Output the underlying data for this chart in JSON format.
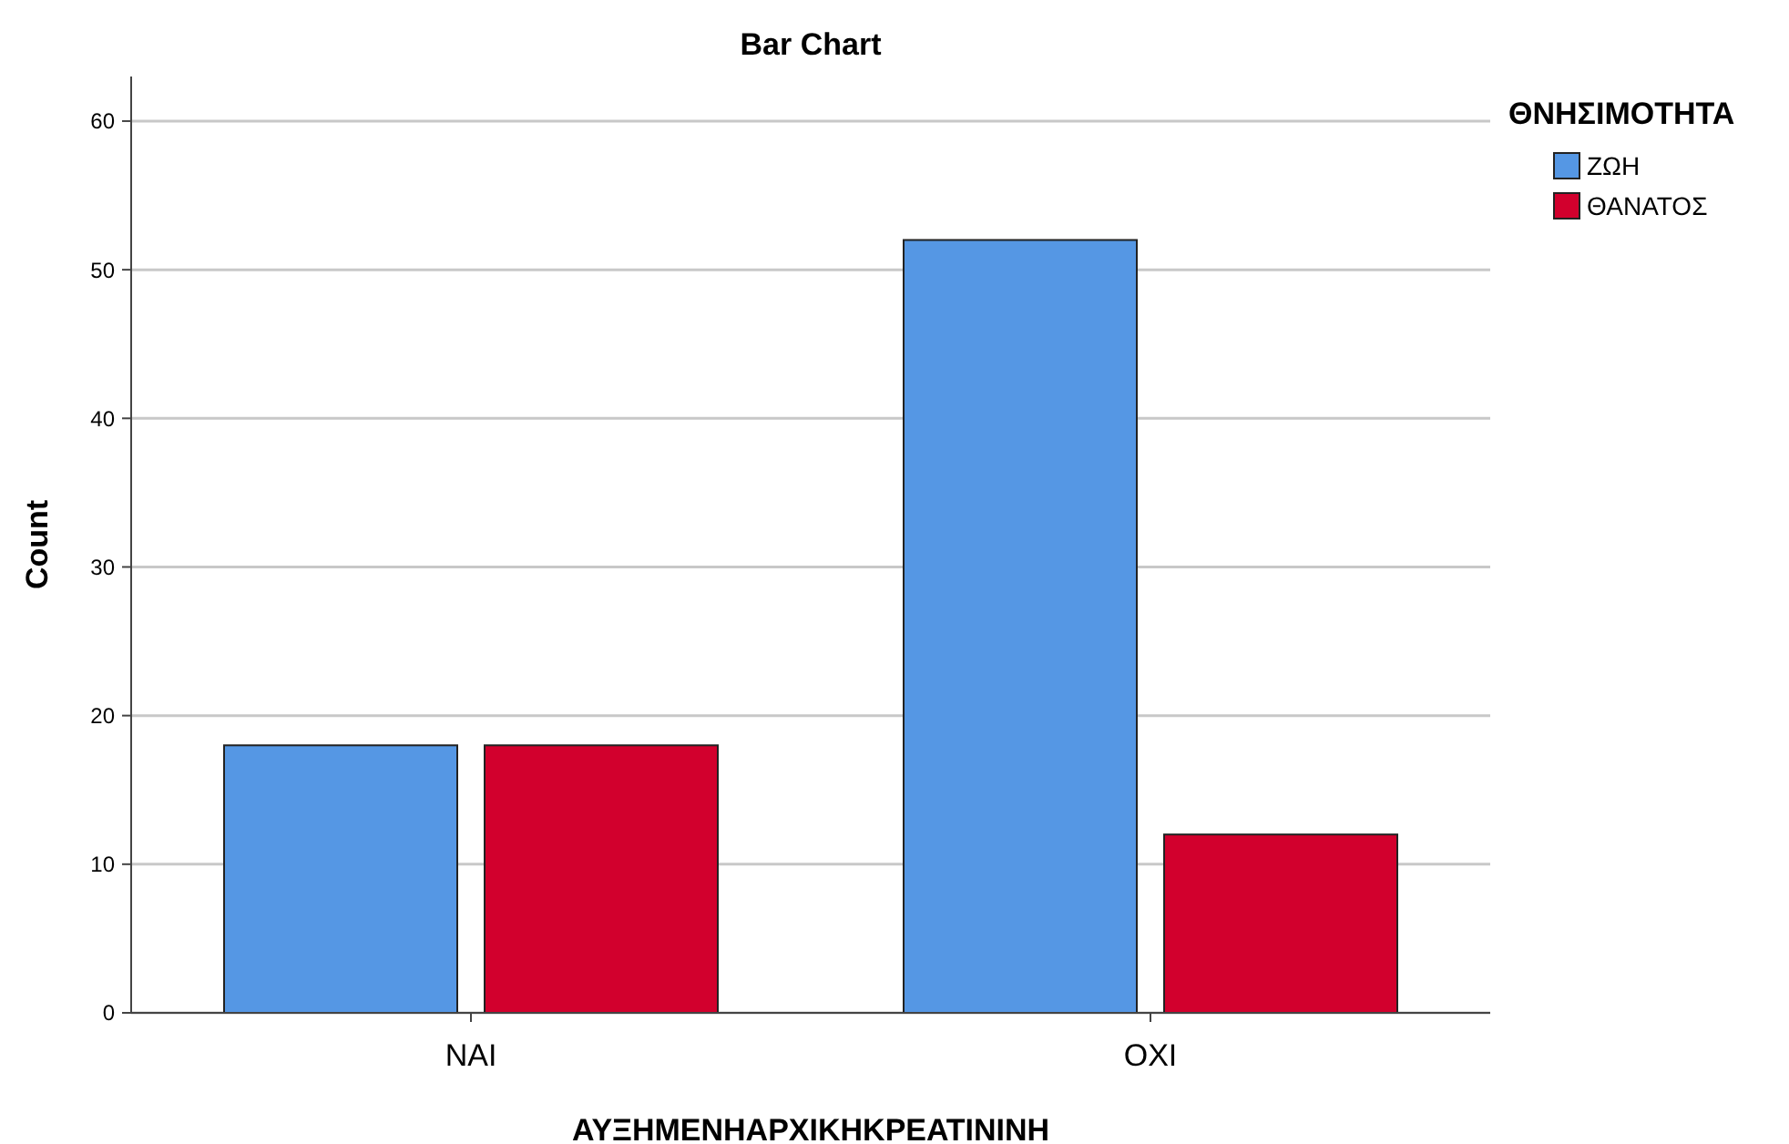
{
  "chart_data": {
    "type": "bar",
    "title": "Bar Chart",
    "xlabel": "ΑΥΞΗΜΕΝΗΑΡΧΙΚΗΚΡΕΑΤΙΝΙΝΗ",
    "ylabel": "Count",
    "legend_title": "ΘΝΗΣΙΜΟΤΗΤΑ",
    "categories": [
      "ΝΑΙ",
      "ΟΧΙ"
    ],
    "series": [
      {
        "name": "ΖΩΗ",
        "color": "#5597e4",
        "values": [
          18,
          52
        ]
      },
      {
        "name": "ΘΑΝΑΤΟΣ",
        "color": "#d2002d",
        "values": [
          18,
          12
        ]
      }
    ],
    "ylim": [
      0,
      63
    ],
    "yticks": [
      0,
      10,
      20,
      30,
      40,
      50,
      60
    ],
    "grid": "y",
    "legend": "top right"
  }
}
